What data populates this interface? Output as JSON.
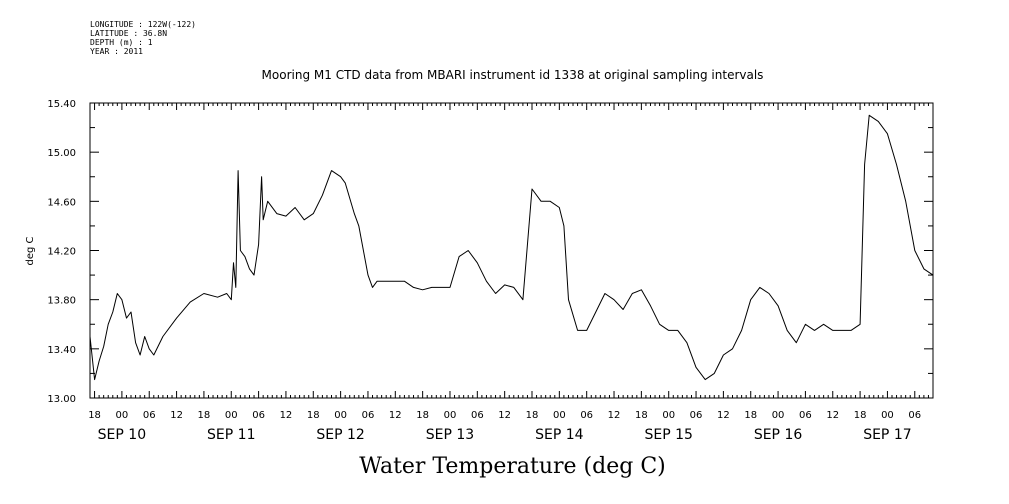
{
  "header": {
    "lines": [
      "LONGITUDE : 122W(-122)",
      "LATITUDE : 36.8N",
      "DEPTH (m) : 1",
      "YEAR : 2011"
    ],
    "title": "Mooring M1 CTD data from MBARI instrument id 1338 at original sampling intervals"
  },
  "chart_data": {
    "type": "line",
    "title": "Water Temperature (deg C)",
    "subtitle": "Mooring M1 CTD data from MBARI instrument id 1338 at original sampling intervals",
    "xlabel": "",
    "ylabel": "deg C",
    "ylim": [
      13.0,
      15.4
    ],
    "xlim": [
      "2011-09-09 17:00",
      "2011-09-17 10:00"
    ],
    "yticks": [
      "13.00",
      "13.40",
      "13.80",
      "14.20",
      "14.60",
      "15.00",
      "15.40"
    ],
    "xticks": [
      {
        "t": "2011-09-09 18:00",
        "label": "18"
      },
      {
        "t": "2011-09-10 00:00",
        "label": "00"
      },
      {
        "t": "2011-09-10 06:00",
        "label": "06"
      },
      {
        "t": "2011-09-10 12:00",
        "label": "12"
      },
      {
        "t": "2011-09-10 18:00",
        "label": "18"
      },
      {
        "t": "2011-09-11 00:00",
        "label": "00"
      },
      {
        "t": "2011-09-11 06:00",
        "label": "06"
      },
      {
        "t": "2011-09-11 12:00",
        "label": "12"
      },
      {
        "t": "2011-09-11 18:00",
        "label": "18"
      },
      {
        "t": "2011-09-12 00:00",
        "label": "00"
      },
      {
        "t": "2011-09-12 06:00",
        "label": "06"
      },
      {
        "t": "2011-09-12 12:00",
        "label": "12"
      },
      {
        "t": "2011-09-12 18:00",
        "label": "18"
      },
      {
        "t": "2011-09-13 00:00",
        "label": "00"
      },
      {
        "t": "2011-09-13 06:00",
        "label": "06"
      },
      {
        "t": "2011-09-13 12:00",
        "label": "12"
      },
      {
        "t": "2011-09-13 18:00",
        "label": "18"
      },
      {
        "t": "2011-09-14 00:00",
        "label": "00"
      },
      {
        "t": "2011-09-14 06:00",
        "label": "06"
      },
      {
        "t": "2011-09-14 12:00",
        "label": "12"
      },
      {
        "t": "2011-09-14 18:00",
        "label": "18"
      },
      {
        "t": "2011-09-15 00:00",
        "label": "00"
      },
      {
        "t": "2011-09-15 06:00",
        "label": "06"
      },
      {
        "t": "2011-09-15 12:00",
        "label": "12"
      },
      {
        "t": "2011-09-15 18:00",
        "label": "18"
      },
      {
        "t": "2011-09-16 00:00",
        "label": "00"
      },
      {
        "t": "2011-09-16 06:00",
        "label": "06"
      },
      {
        "t": "2011-09-16 12:00",
        "label": "12"
      },
      {
        "t": "2011-09-16 18:00",
        "label": "18"
      },
      {
        "t": "2011-09-17 00:00",
        "label": "00"
      },
      {
        "t": "2011-09-17 06:00",
        "label": "06"
      }
    ],
    "date_labels": [
      {
        "t": "2011-09-10 00:00",
        "label": "SEP 10"
      },
      {
        "t": "2011-09-11 00:00",
        "label": "SEP 11"
      },
      {
        "t": "2011-09-12 00:00",
        "label": "SEP 12"
      },
      {
        "t": "2011-09-13 00:00",
        "label": "SEP 13"
      },
      {
        "t": "2011-09-14 00:00",
        "label": "SEP 14"
      },
      {
        "t": "2011-09-15 00:00",
        "label": "SEP 15"
      },
      {
        "t": "2011-09-16 00:00",
        "label": "SEP 16"
      },
      {
        "t": "2011-09-17 00:00",
        "label": "SEP 17"
      }
    ],
    "series": [
      {
        "color": "#000000",
        "x": [
          "2011-09-09 17:00",
          "2011-09-09 18:00",
          "2011-09-09 19:00",
          "2011-09-09 20:00",
          "2011-09-09 21:00",
          "2011-09-09 22:00",
          "2011-09-09 23:00",
          "2011-09-10 00:00",
          "2011-09-10 01:00",
          "2011-09-10 02:00",
          "2011-09-10 03:00",
          "2011-09-10 04:00",
          "2011-09-10 05:00",
          "2011-09-10 06:00",
          "2011-09-10 07:00",
          "2011-09-10 09:00",
          "2011-09-10 12:00",
          "2011-09-10 15:00",
          "2011-09-10 18:00",
          "2011-09-10 21:00",
          "2011-09-10 23:00",
          "2011-09-11 00:00",
          "2011-09-11 00:30",
          "2011-09-11 01:00",
          "2011-09-11 01:30",
          "2011-09-11 02:00",
          "2011-09-11 03:00",
          "2011-09-11 04:00",
          "2011-09-11 05:00",
          "2011-09-11 06:00",
          "2011-09-11 06:40",
          "2011-09-11 07:00",
          "2011-09-11 08:00",
          "2011-09-11 10:00",
          "2011-09-11 12:00",
          "2011-09-11 14:00",
          "2011-09-11 16:00",
          "2011-09-11 18:00",
          "2011-09-11 20:00",
          "2011-09-11 22:00",
          "2011-09-12 00:00",
          "2011-09-12 01:00",
          "2011-09-12 03:00",
          "2011-09-12 04:00",
          "2011-09-12 06:00",
          "2011-09-12 07:00",
          "2011-09-12 08:00",
          "2011-09-12 12:00",
          "2011-09-12 14:00",
          "2011-09-12 16:00",
          "2011-09-12 18:00",
          "2011-09-12 20:00",
          "2011-09-12 22:00",
          "2011-09-13 00:00",
          "2011-09-13 02:00",
          "2011-09-13 04:00",
          "2011-09-13 06:00",
          "2011-09-13 08:00",
          "2011-09-13 10:00",
          "2011-09-13 12:00",
          "2011-09-13 14:00",
          "2011-09-13 16:00",
          "2011-09-13 18:00",
          "2011-09-13 20:00",
          "2011-09-13 22:00",
          "2011-09-14 00:00",
          "2011-09-14 01:00",
          "2011-09-14 02:00",
          "2011-09-14 04:00",
          "2011-09-14 06:00",
          "2011-09-14 08:00",
          "2011-09-14 10:00",
          "2011-09-14 12:00",
          "2011-09-14 14:00",
          "2011-09-14 16:00",
          "2011-09-14 18:00",
          "2011-09-14 20:00",
          "2011-09-14 22:00",
          "2011-09-15 00:00",
          "2011-09-15 02:00",
          "2011-09-15 04:00",
          "2011-09-15 06:00",
          "2011-09-15 08:00",
          "2011-09-15 10:00",
          "2011-09-15 12:00",
          "2011-09-15 14:00",
          "2011-09-15 16:00",
          "2011-09-15 18:00",
          "2011-09-15 20:00",
          "2011-09-15 22:00",
          "2011-09-16 00:00",
          "2011-09-16 02:00",
          "2011-09-16 04:00",
          "2011-09-16 06:00",
          "2011-09-16 08:00",
          "2011-09-16 10:00",
          "2011-09-16 12:00",
          "2011-09-16 14:00",
          "2011-09-16 16:00",
          "2011-09-16 18:00",
          "2011-09-16 19:00",
          "2011-09-16 20:00",
          "2011-09-16 22:00",
          "2011-09-17 00:00",
          "2011-09-17 02:00",
          "2011-09-17 04:00",
          "2011-09-17 06:00",
          "2011-09-17 08:00",
          "2011-09-17 10:00"
        ],
        "y": [
          13.5,
          13.15,
          13.3,
          13.42,
          13.6,
          13.7,
          13.85,
          13.8,
          13.65,
          13.7,
          13.45,
          13.35,
          13.5,
          13.4,
          13.35,
          13.5,
          13.65,
          13.78,
          13.85,
          13.82,
          13.85,
          13.8,
          14.1,
          13.9,
          14.85,
          14.2,
          14.15,
          14.05,
          14.0,
          14.25,
          14.8,
          14.45,
          14.6,
          14.5,
          14.48,
          14.55,
          14.45,
          14.5,
          14.65,
          14.85,
          14.8,
          14.75,
          14.5,
          14.4,
          14.0,
          13.9,
          13.95,
          13.95,
          13.95,
          13.9,
          13.88,
          13.9,
          13.9,
          13.9,
          14.15,
          14.2,
          14.1,
          13.95,
          13.85,
          13.92,
          13.9,
          13.8,
          14.7,
          14.6,
          14.6,
          14.55,
          14.4,
          13.8,
          13.55,
          13.55,
          13.7,
          13.85,
          13.8,
          13.72,
          13.85,
          13.88,
          13.75,
          13.6,
          13.55,
          13.55,
          13.45,
          13.25,
          13.15,
          13.2,
          13.35,
          13.4,
          13.55,
          13.8,
          13.9,
          13.85,
          13.75,
          13.55,
          13.45,
          13.6,
          13.55,
          13.6,
          13.55,
          13.55,
          13.55,
          13.6,
          14.9,
          15.3,
          15.25,
          15.15,
          14.9,
          14.6,
          14.2,
          14.05,
          14.0
        ]
      }
    ]
  }
}
